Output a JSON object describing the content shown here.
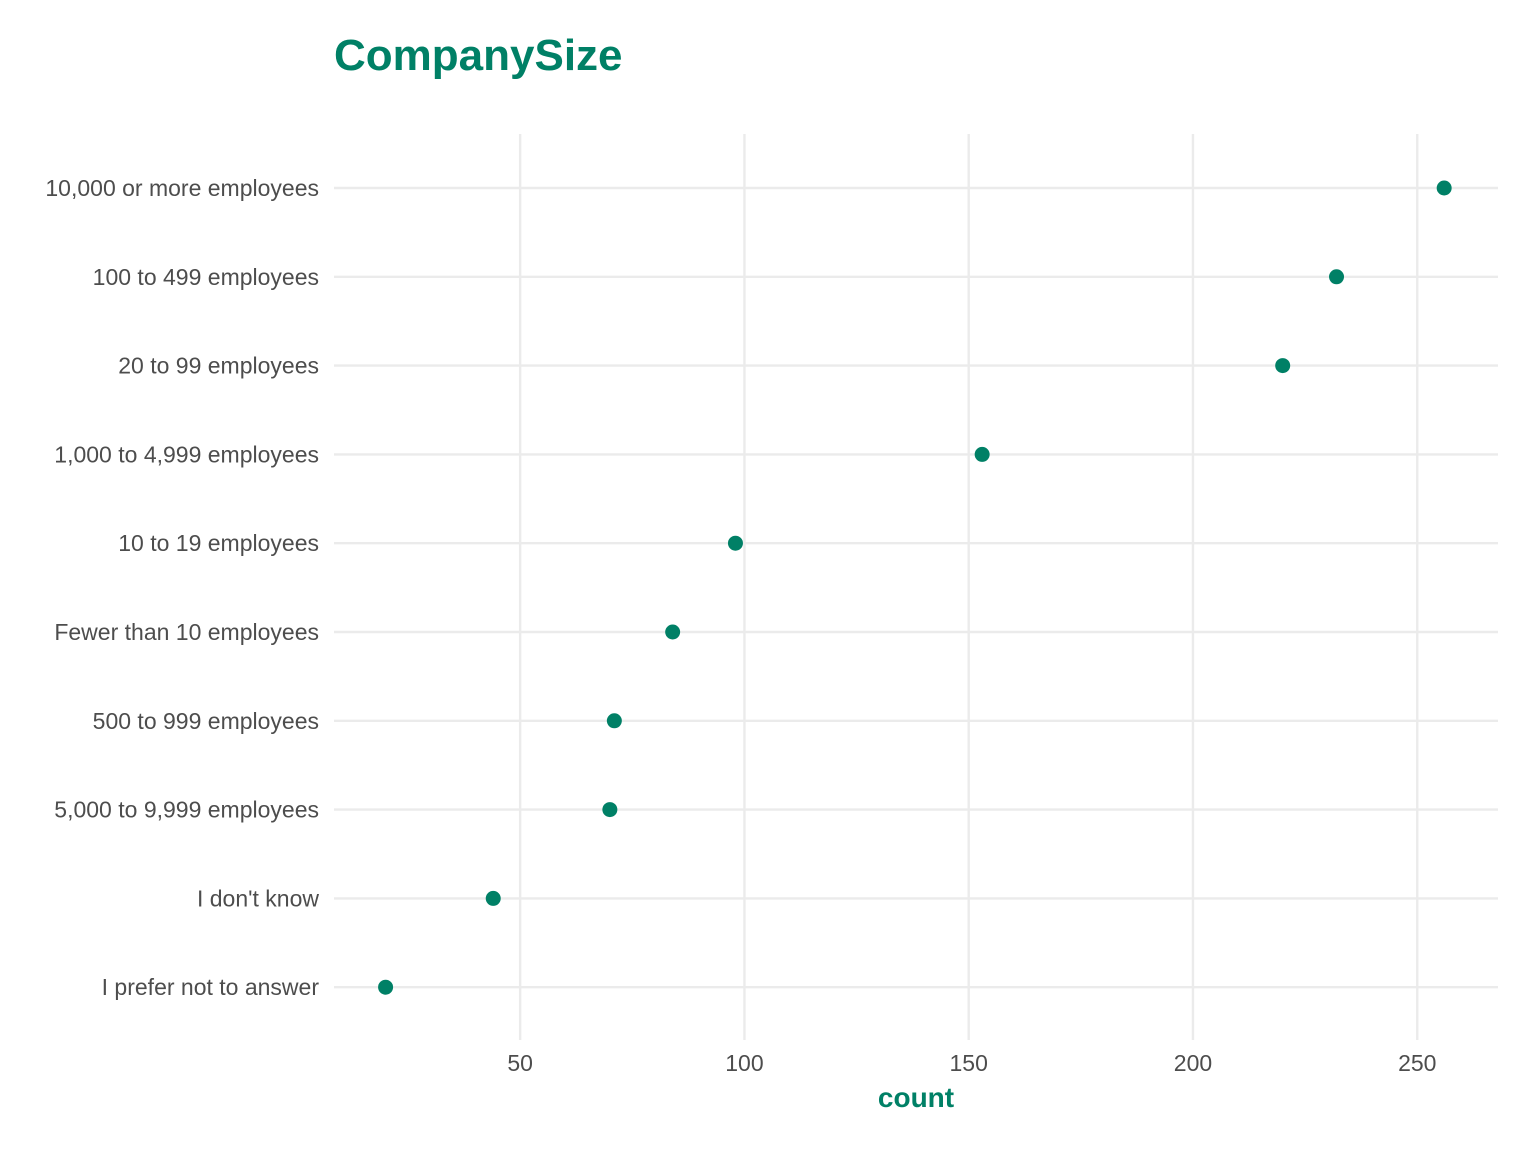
{
  "chart_data": {
    "type": "scatter",
    "title": "CompanySize",
    "xlabel": "count",
    "ylabel": "",
    "categories": [
      "10,000 or more employees",
      "100 to 499 employees",
      "20 to 99 employees",
      "1,000 to 4,999 employees",
      "10 to 19 employees",
      "Fewer than 10 employees",
      "500 to 999 employees",
      "5,000 to 9,999 employees",
      "I don't know",
      "I prefer not to answer"
    ],
    "values": [
      256,
      232,
      220,
      153,
      98,
      84,
      71,
      70,
      44,
      20
    ],
    "xlim": [
      8.5,
      268
    ],
    "xticks": [
      50,
      100,
      150,
      200,
      250
    ],
    "xtick_labels": [
      "50",
      "100",
      "150",
      "200",
      "250"
    ],
    "grid": true,
    "legend": "none",
    "point_color": "#008066",
    "title_color": "#008066",
    "grid_color": "#ebebeb"
  }
}
